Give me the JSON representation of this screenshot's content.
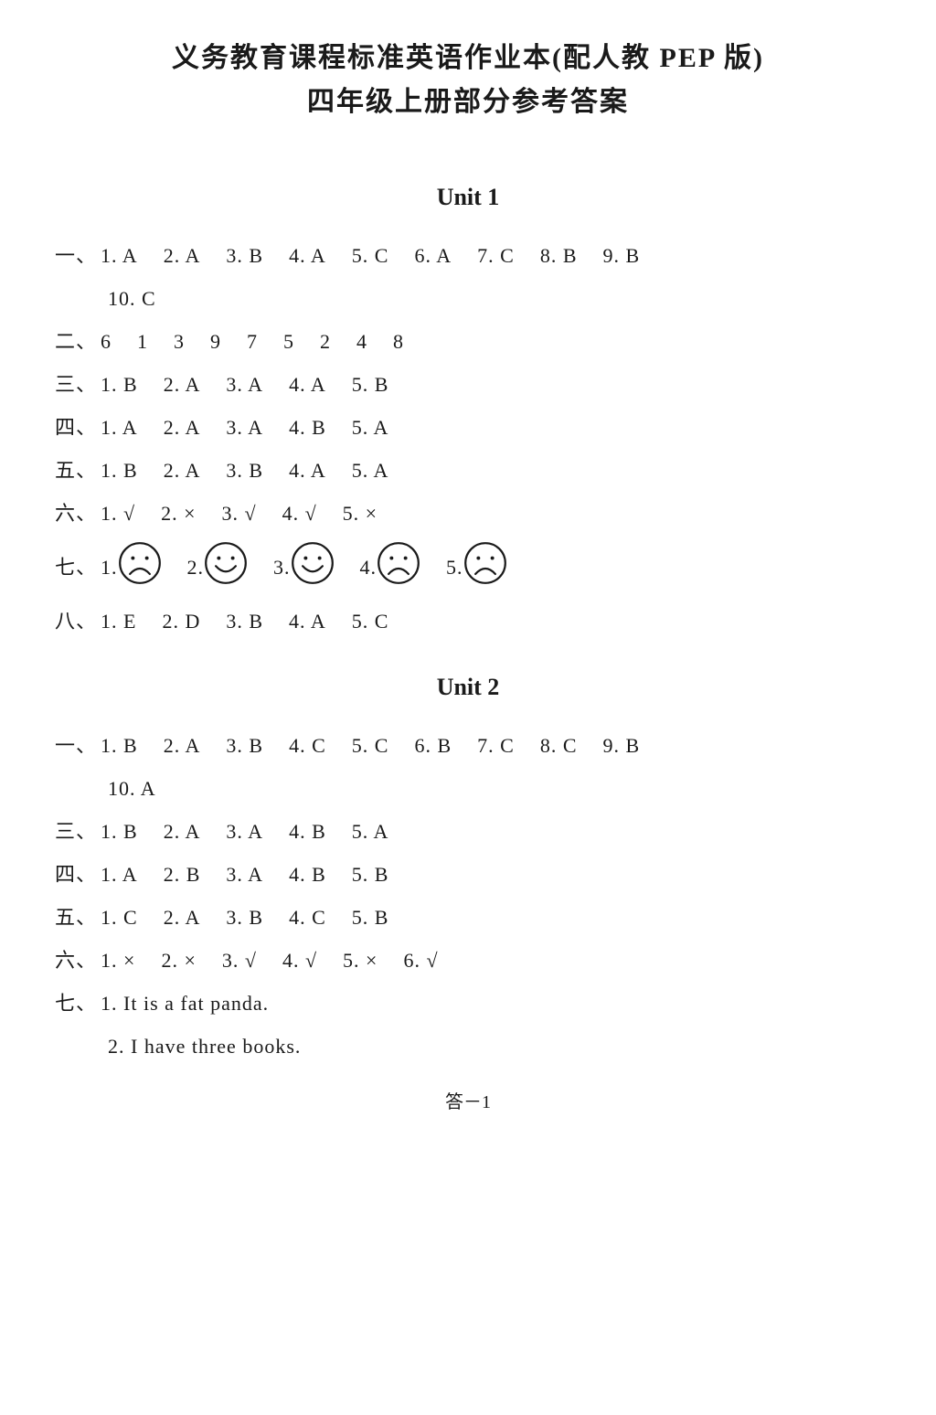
{
  "title_line1": "义务教育课程标准英语作业本(配人教 PEP 版)",
  "title_line2": "四年级上册部分参考答案",
  "unit1": {
    "heading": "Unit 1",
    "q1": {
      "label": "一、",
      "items": [
        "1. A",
        "2. A",
        "3. B",
        "4. A",
        "5. C",
        "6. A",
        "7. C",
        "8. B",
        "9. B"
      ],
      "extra": "10. C"
    },
    "q2": {
      "label": "二、",
      "items": [
        "6",
        "1",
        "3",
        "9",
        "7",
        "5",
        "2",
        "4",
        "8"
      ]
    },
    "q3": {
      "label": "三、",
      "items": [
        "1. B",
        "2. A",
        "3. A",
        "4. A",
        "5. B"
      ]
    },
    "q4": {
      "label": "四、",
      "items": [
        "1. A",
        "2. A",
        "3. A",
        "4. B",
        "5. A"
      ]
    },
    "q5": {
      "label": "五、",
      "items": [
        "1. B",
        "2. A",
        "3. B",
        "4. A",
        "5. A"
      ]
    },
    "q6": {
      "label": "六、",
      "items": [
        "1. √",
        "2. ×",
        "3. √",
        "4. √",
        "5. ×"
      ]
    },
    "q7": {
      "label": "七、",
      "nums": [
        "1.",
        "2.",
        "3.",
        "4.",
        "5."
      ],
      "faces": [
        "sad",
        "happy",
        "happy",
        "sad",
        "sad"
      ]
    },
    "q8": {
      "label": "八、",
      "items": [
        "1. E",
        "2. D",
        "3. B",
        "4. A",
        "5. C"
      ]
    }
  },
  "unit2": {
    "heading": "Unit 2",
    "q1": {
      "label": "一、",
      "items": [
        "1. B",
        "2. A",
        "3. B",
        "4. C",
        "5. C",
        "6. B",
        "7. C",
        "8. C",
        "9. B"
      ],
      "extra": "10. A"
    },
    "q3": {
      "label": "三、",
      "items": [
        "1. B",
        "2. A",
        "3. A",
        "4. B",
        "5. A"
      ]
    },
    "q4": {
      "label": "四、",
      "items": [
        "1. A",
        "2. B",
        "3. A",
        "4. B",
        "5. B"
      ]
    },
    "q5": {
      "label": "五、",
      "items": [
        "1. C",
        "2. A",
        "3. B",
        "4. C",
        "5. B"
      ]
    },
    "q6": {
      "label": "六、",
      "items": [
        "1. ×",
        "2. ×",
        "3. √",
        "4. √",
        "5. ×",
        "6. √"
      ]
    },
    "q7": {
      "label": "七、",
      "line1": "1. It is a fat panda.",
      "line2": "2. I have three books."
    }
  },
  "footer": "答－1",
  "face_style": {
    "size": 48,
    "stroke": "#1a1a1a",
    "stroke_width": 2.2
  }
}
